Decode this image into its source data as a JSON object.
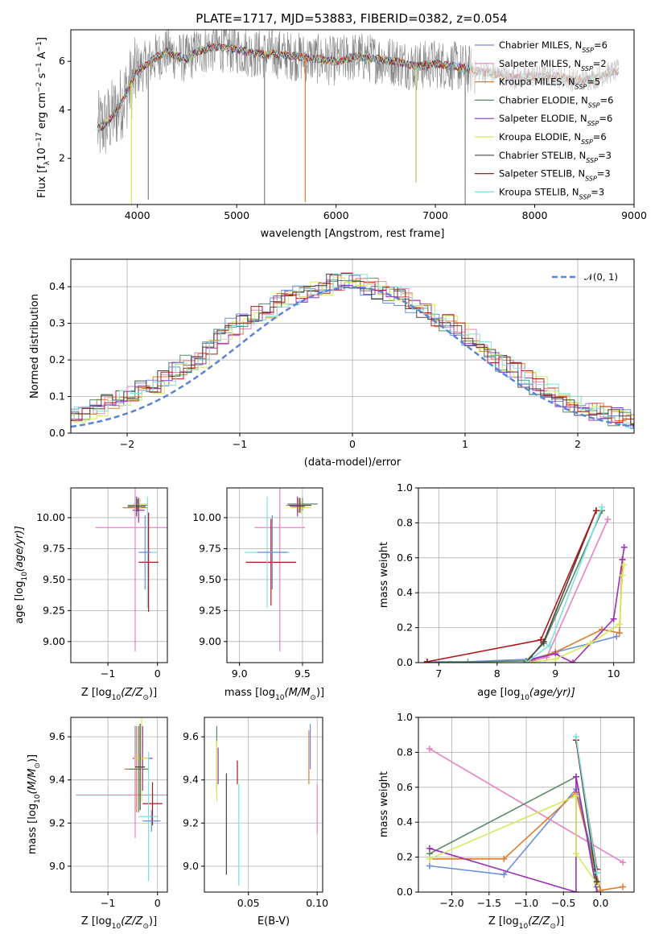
{
  "figure": {
    "title": "PLATE=1717, MJD=53883, FIBERID=0382, z=0.054"
  },
  "models": [
    {
      "name": "Chabrier MILES",
      "nssp": "6",
      "color": "#6b8fde"
    },
    {
      "name": "Salpeter MILES",
      "nssp": "2",
      "color": "#e882c2"
    },
    {
      "name": "Kroupa MILES",
      "nssp": "5",
      "color": "#e07b2e"
    },
    {
      "name": "Chabrier ELODIE",
      "nssp": "6",
      "color": "#5a8a64"
    },
    {
      "name": "Salpeter ELODIE",
      "nssp": "6",
      "color": "#9b2fb5"
    },
    {
      "name": "Kroupa ELODIE",
      "nssp": "6",
      "color": "#d6e85c"
    },
    {
      "name": "Chabrier STELIB",
      "nssp": "3",
      "color": "#4a4040"
    },
    {
      "name": "Salpeter STELIB",
      "nssp": "3",
      "color": "#b01818"
    },
    {
      "name": "Kroupa STELIB",
      "nssp": "3",
      "color": "#7fe0e0"
    }
  ],
  "chart_data": [
    {
      "id": "spectrum",
      "type": "line",
      "xlabel": "wavelength [Angstrom, rest frame]",
      "ylabel_main": "Flux [f",
      "ylabel_sub": "λ",
      "ylabel_mid": "10",
      "ylabel_exp1": "−17",
      "ylabel_rest1": " erg cm",
      "ylabel_exp2": "−2",
      "ylabel_rest2": " s",
      "ylabel_exp3": "−1",
      "ylabel_rest3": " A",
      "ylabel_exp4": "−1",
      "ylabel_end": "]",
      "xlim": [
        3330,
        9000
      ],
      "ylim": [
        0.1,
        7.3
      ],
      "xticks": [
        "4000",
        "5000",
        "6000",
        "7000",
        "8000",
        "9000"
      ],
      "yticks": [
        "2",
        "4",
        "6"
      ],
      "legend_position": "right",
      "continuum": {
        "x": [
          3600,
          3700,
          3800,
          3900,
          4000,
          4100,
          4200,
          4300,
          4400,
          4500,
          4600,
          4800,
          5000,
          5200,
          5400,
          5600,
          5800,
          6000,
          6200,
          6400,
          6600,
          6800,
          7000,
          7200,
          7400,
          7600,
          7800,
          8000,
          8200,
          8400,
          8600,
          8800
        ],
        "y": [
          3.2,
          3.5,
          4.0,
          4.8,
          5.6,
          5.9,
          6.2,
          6.4,
          6.2,
          6.1,
          6.4,
          6.6,
          6.5,
          6.3,
          6.3,
          6.2,
          6.1,
          6.0,
          6.2,
          6.1,
          6.0,
          5.8,
          5.9,
          5.8,
          5.6,
          5.5,
          5.3,
          5.4,
          5.4,
          5.2,
          5.3,
          5.6
        ]
      },
      "data_line_color": "#808080",
      "spikes": [
        {
          "x": 5280,
          "y_low": 0.1,
          "color": "#808080"
        },
        {
          "x": 5690,
          "y_low": 0.2,
          "color": "#e07b2e"
        },
        {
          "x": 6805,
          "y_low": 1.0,
          "color": "#b5c06a"
        },
        {
          "x": 7300,
          "y_low": 0.1,
          "color": "#808080"
        },
        {
          "x": 3940,
          "y_low": 0.1,
          "color": "#d6e85c"
        },
        {
          "x": 4110,
          "y_low": 0.3,
          "color": "#808080"
        }
      ]
    },
    {
      "id": "residuals",
      "type": "histogram",
      "xlabel": "(data-model)/error",
      "ylabel": "Normed distribution",
      "xlim": [
        -2.5,
        2.5
      ],
      "ylim": [
        0,
        0.475
      ],
      "xticks": [
        "−2",
        "−1",
        "0",
        "1",
        "2"
      ],
      "xtick_values": [
        -2,
        -1,
        0,
        1,
        2
      ],
      "yticks": [
        "0.0",
        "0.1",
        "0.2",
        "0.3",
        "0.4"
      ],
      "ytick_values": [
        0,
        0.1,
        0.2,
        0.3,
        0.4
      ],
      "bin_width": 0.1,
      "gaussian_label": "𝒩(0, 1)",
      "gaussian_color": "#5b84d6",
      "profile": [
        0.02,
        0.025,
        0.03,
        0.04,
        0.045,
        0.05,
        0.055,
        0.07,
        0.09,
        0.1,
        0.11,
        0.12,
        0.13,
        0.15,
        0.17,
        0.19,
        0.2,
        0.23,
        0.26,
        0.29,
        0.31,
        0.33,
        0.34,
        0.36,
        0.37,
        0.38,
        0.39,
        0.4,
        0.41,
        0.42,
        0.41,
        0.4,
        0.39,
        0.38,
        0.37,
        0.35,
        0.33,
        0.31,
        0.3,
        0.28,
        0.26,
        0.24,
        0.21,
        0.19,
        0.17,
        0.15,
        0.13,
        0.11,
        0.095,
        0.08,
        0.07,
        0.06,
        0.05,
        0.045,
        0.04,
        0.035,
        0.03,
        0.025,
        0.02,
        0.015
      ]
    },
    {
      "id": "age_vs_Z",
      "type": "scatter",
      "xlabel": "Z [log",
      "xlabel_sub": "10",
      "xlabel_rest": "(Z/Z",
      "xlabel_sun": "⊙",
      "xlabel_end": ")]",
      "ylabel": "age  [log",
      "ylabel_sub": "10",
      "ylabel_rest": "(age/yr)]",
      "xlim": [
        -1.75,
        0.2
      ],
      "ylim": [
        8.83,
        10.24
      ],
      "xticks": [
        "−1",
        "0"
      ],
      "xtick_values": [
        -1,
        0
      ],
      "yticks": [
        "9.00",
        "9.25",
        "9.50",
        "9.75",
        "10.00"
      ],
      "ytick_values": [
        9.0,
        9.25,
        9.5,
        9.75,
        10.0
      ],
      "points": [
        {
          "x": -0.45,
          "y": 10.08,
          "xerr": 0.25,
          "yerr": 0.06,
          "model": 2
        },
        {
          "x": -0.4,
          "y": 10.1,
          "xerr": 0.2,
          "yerr": 0.05,
          "model": 3
        },
        {
          "x": -0.35,
          "y": 10.11,
          "xerr": 0.15,
          "yerr": 0.05,
          "model": 5
        },
        {
          "x": -0.38,
          "y": 10.06,
          "xerr": 0.12,
          "yerr": 0.1,
          "model": 4
        },
        {
          "x": -0.42,
          "y": 10.09,
          "xerr": 0.18,
          "yerr": 0.08,
          "model": 6
        },
        {
          "x": -0.45,
          "y": 9.92,
          "xerr": 0.8,
          "yerr": 1.0,
          "model": 1
        },
        {
          "x": -0.2,
          "y": 9.72,
          "xerr": 0.2,
          "yerr": 0.45,
          "model": 8
        },
        {
          "x": -0.18,
          "y": 9.64,
          "xerr": 0.2,
          "yerr": 0.4,
          "model": 7
        },
        {
          "x": -0.25,
          "y": 9.72,
          "xerr": 0.12,
          "yerr": 0.3,
          "model": 0
        }
      ]
    },
    {
      "id": "age_vs_mass",
      "type": "scatter",
      "xlabel": "mass [log",
      "xlabel_sub": "10",
      "xlabel_rest": "(M/M",
      "xlabel_sun": "⊙",
      "xlabel_end": ")]",
      "xlim": [
        8.9,
        9.66
      ],
      "ylim": [
        8.83,
        10.24
      ],
      "xticks": [
        "9.0",
        "9.5"
      ],
      "xtick_values": [
        9.0,
        9.5
      ],
      "yticks": [
        "9.00",
        "9.25",
        "9.50",
        "9.75",
        "10.00"
      ],
      "ytick_values": [
        9.0,
        9.25,
        9.5,
        9.75,
        10.0
      ],
      "points": [
        {
          "x": 9.5,
          "y": 10.11,
          "xerr": 0.12,
          "yerr": 0.05,
          "model": 3
        },
        {
          "x": 9.47,
          "y": 10.1,
          "xerr": 0.1,
          "yerr": 0.06,
          "model": 2
        },
        {
          "x": 9.49,
          "y": 10.08,
          "xerr": 0.08,
          "yerr": 0.05,
          "model": 5
        },
        {
          "x": 9.46,
          "y": 10.09,
          "xerr": 0.06,
          "yerr": 0.08,
          "model": 4
        },
        {
          "x": 9.48,
          "y": 10.1,
          "xerr": 0.09,
          "yerr": 0.06,
          "model": 6
        },
        {
          "x": 9.32,
          "y": 9.92,
          "xerr": 0.2,
          "yerr": 1.0,
          "model": 1
        },
        {
          "x": 9.25,
          "y": 9.64,
          "xerr": 0.2,
          "yerr": 0.35,
          "model": 7
        },
        {
          "x": 9.22,
          "y": 9.72,
          "xerr": 0.18,
          "yerr": 0.45,
          "model": 8
        },
        {
          "x": 9.26,
          "y": 9.72,
          "xerr": 0.12,
          "yerr": 0.3,
          "model": 0
        }
      ]
    },
    {
      "id": "weight_vs_age",
      "type": "line",
      "xlabel": "age  [log",
      "xlabel_sub": "10",
      "xlabel_rest": "(age/yr)]",
      "ylabel": "mass weight",
      "xlim": [
        6.65,
        10.35
      ],
      "ylim": [
        0,
        1.0
      ],
      "xticks": [
        "7",
        "8",
        "9",
        "10"
      ],
      "xtick_values": [
        7,
        8,
        9,
        10
      ],
      "yticks": [
        "0.0",
        "0.2",
        "0.4",
        "0.6",
        "0.8",
        "1.0"
      ],
      "ytick_values": [
        0,
        0.2,
        0.4,
        0.6,
        0.8,
        1.0
      ],
      "series": [
        {
          "model": 0,
          "x": [
            6.8,
            7.5,
            8.6,
            9.0,
            9.6,
            10.05
          ],
          "y": [
            0.005,
            0.005,
            0.02,
            0.06,
            0.11,
            0.15
          ]
        },
        {
          "model": 1,
          "x": [
            8.6,
            8.85,
            9.9
          ],
          "y": [
            0.01,
            0.03,
            0.82
          ]
        },
        {
          "model": 2,
          "x": [
            8.5,
            9.0,
            9.8,
            10.1,
            10.15
          ],
          "y": [
            0.005,
            0.06,
            0.19,
            0.17,
            0.59
          ]
        },
        {
          "model": 3,
          "x": [
            6.8,
            8.5,
            8.8,
            9.8
          ],
          "y": [
            0.0,
            0.01,
            0.11,
            0.87
          ]
        },
        {
          "model": 4,
          "x": [
            8.6,
            9.0,
            9.3,
            10.0,
            10.15,
            10.18
          ],
          "y": [
            0.02,
            0.05,
            0.0,
            0.25,
            0.59,
            0.66
          ]
        },
        {
          "model": 5,
          "x": [
            8.5,
            9.0,
            9.6,
            10.1,
            10.15,
            10.18
          ],
          "y": [
            0.0,
            0.02,
            0.11,
            0.22,
            0.5,
            0.56
          ]
        },
        {
          "model": 6,
          "x": [
            8.5,
            8.8,
            9.7
          ],
          "y": [
            0.0,
            0.12,
            0.87
          ]
        },
        {
          "model": 7,
          "x": [
            6.8,
            8.75,
            9.7
          ],
          "y": [
            0.005,
            0.13,
            0.87
          ]
        },
        {
          "model": 8,
          "x": [
            8.5,
            8.9,
            9.8
          ],
          "y": [
            0.0,
            0.1,
            0.89
          ]
        }
      ]
    },
    {
      "id": "mass_vs_Z",
      "type": "scatter",
      "xlabel": "Z [log",
      "xlabel_sub": "10",
      "xlabel_rest": "(Z/Z",
      "xlabel_sun": "⊙",
      "xlabel_end": ")]",
      "ylabel": "mass [log",
      "ylabel_sub": "10",
      "ylabel_rest": "(M/M",
      "ylabel_sun": "⊙",
      "ylabel_end": ")]",
      "xlim": [
        -1.75,
        0.2
      ],
      "ylim": [
        8.88,
        9.69
      ],
      "xticks": [
        "−1",
        "0"
      ],
      "xtick_values": [
        -1,
        0
      ],
      "yticks": [
        "9.0",
        "9.2",
        "9.4",
        "9.6"
      ],
      "ytick_values": [
        9.0,
        9.2,
        9.4,
        9.6
      ],
      "points": [
        {
          "x": -0.45,
          "y": 9.45,
          "xerr": 0.2,
          "yerr": 0.2,
          "model": 0
        },
        {
          "x": -0.45,
          "y": 9.33,
          "xerr": 1.2,
          "yerr": 0.2,
          "model": 1
        },
        {
          "x": -0.42,
          "y": 9.45,
          "xerr": 0.25,
          "yerr": 0.2,
          "model": 2
        },
        {
          "x": -0.38,
          "y": 9.45,
          "xerr": 0.2,
          "yerr": 0.2,
          "model": 3
        },
        {
          "x": -0.3,
          "y": 9.5,
          "xerr": 0.2,
          "yerr": 0.15,
          "model": 4
        },
        {
          "x": -0.32,
          "y": 9.5,
          "xerr": 0.15,
          "yerr": 0.2,
          "model": 5
        },
        {
          "x": -0.35,
          "y": 9.46,
          "xerr": 0.1,
          "yerr": 0.2,
          "model": 6
        },
        {
          "x": -0.1,
          "y": 9.29,
          "xerr": 0.2,
          "yerr": 0.1,
          "model": 7
        },
        {
          "x": -0.18,
          "y": 9.23,
          "xerr": 0.2,
          "yerr": 0.3,
          "model": 8
        },
        {
          "x": -0.12,
          "y": 9.21,
          "xerr": 0.18,
          "yerr": 0.05,
          "model": 0
        }
      ]
    },
    {
      "id": "mass_vs_ebv",
      "type": "scatter",
      "xlabel": "E(B-V)",
      "xlim": [
        0.018,
        0.104
      ],
      "ylim": [
        8.88,
        9.69
      ],
      "xticks": [
        "0.05",
        "0.10"
      ],
      "xtick_values": [
        0.05,
        0.1
      ],
      "yticks": [
        "9.0",
        "9.2",
        "9.4",
        "9.6"
      ],
      "ytick_values": [
        9.0,
        9.2,
        9.4,
        9.6
      ],
      "bars": [
        {
          "x": 0.027,
          "y_low": 9.35,
          "y_high": 9.65,
          "model": 3
        },
        {
          "x": 0.027,
          "y_low": 9.3,
          "y_high": 9.58,
          "model": 5
        },
        {
          "x": 0.028,
          "y_low": 9.38,
          "y_high": 9.55,
          "model": 4
        },
        {
          "x": 0.034,
          "y_low": 8.96,
          "y_high": 9.43,
          "model": 6
        },
        {
          "x": 0.042,
          "y_low": 9.38,
          "y_high": 9.49,
          "model": 7
        },
        {
          "x": 0.043,
          "y_low": 8.91,
          "y_high": 9.38,
          "model": 8
        },
        {
          "x": 0.094,
          "y_low": 9.38,
          "y_high": 9.63,
          "model": 2
        },
        {
          "x": 0.095,
          "y_low": 9.45,
          "y_high": 9.66,
          "model": 0
        },
        {
          "x": 0.1,
          "y_low": 9.15,
          "y_high": 9.38,
          "model": 1
        }
      ]
    },
    {
      "id": "weight_vs_Z",
      "type": "line",
      "xlabel": "Z [log",
      "xlabel_sub": "10",
      "xlabel_rest": "(Z/Z",
      "xlabel_sun": "⊙",
      "xlabel_end": ")]",
      "ylabel": "mass weight",
      "xlim": [
        -2.45,
        0.45
      ],
      "ylim": [
        0,
        1.0
      ],
      "xticks": [
        "−2.0",
        "−1.5",
        "−1.0",
        "−0.5",
        "0.0"
      ],
      "xtick_values": [
        -2.0,
        -1.5,
        -1.0,
        -0.5,
        0.0
      ],
      "yticks": [
        "0.0",
        "0.2",
        "0.4",
        "0.6",
        "0.8",
        "1.0"
      ],
      "ytick_values": [
        0,
        0.2,
        0.4,
        0.6,
        0.8,
        1.0
      ],
      "series": [
        {
          "model": 0,
          "x": [
            -2.3,
            -1.3,
            -0.33,
            -0.05
          ],
          "y": [
            0.15,
            0.1,
            0.59,
            0.11
          ]
        },
        {
          "model": 1,
          "x": [
            -2.3,
            0.3
          ],
          "y": [
            0.82,
            0.17
          ]
        },
        {
          "model": 2,
          "x": [
            -2.3,
            -1.3,
            -0.33,
            0.0,
            0.3
          ],
          "y": [
            0.19,
            0.19,
            0.57,
            0.01,
            0.03
          ]
        },
        {
          "model": 3,
          "x": [
            -2.3,
            -0.33,
            -0.05
          ],
          "y": [
            0.22,
            0.66,
            0.03
          ]
        },
        {
          "model": 4,
          "x": [
            -2.3,
            -0.33,
            -0.33,
            -0.05
          ],
          "y": [
            0.25,
            0.0,
            0.66,
            0.0
          ]
        },
        {
          "model": 5,
          "x": [
            -2.3,
            -0.33,
            -0.33,
            -0.05
          ],
          "y": [
            0.19,
            0.55,
            0.22,
            0.05
          ]
        },
        {
          "model": 6,
          "x": [
            -0.33,
            -0.05
          ],
          "y": [
            0.87,
            0.06
          ]
        },
        {
          "model": 7,
          "x": [
            -0.33,
            -0.05
          ],
          "y": [
            0.87,
            0.13
          ]
        },
        {
          "model": 8,
          "x": [
            -0.33,
            -0.05
          ],
          "y": [
            0.89,
            0.11
          ]
        }
      ]
    }
  ]
}
